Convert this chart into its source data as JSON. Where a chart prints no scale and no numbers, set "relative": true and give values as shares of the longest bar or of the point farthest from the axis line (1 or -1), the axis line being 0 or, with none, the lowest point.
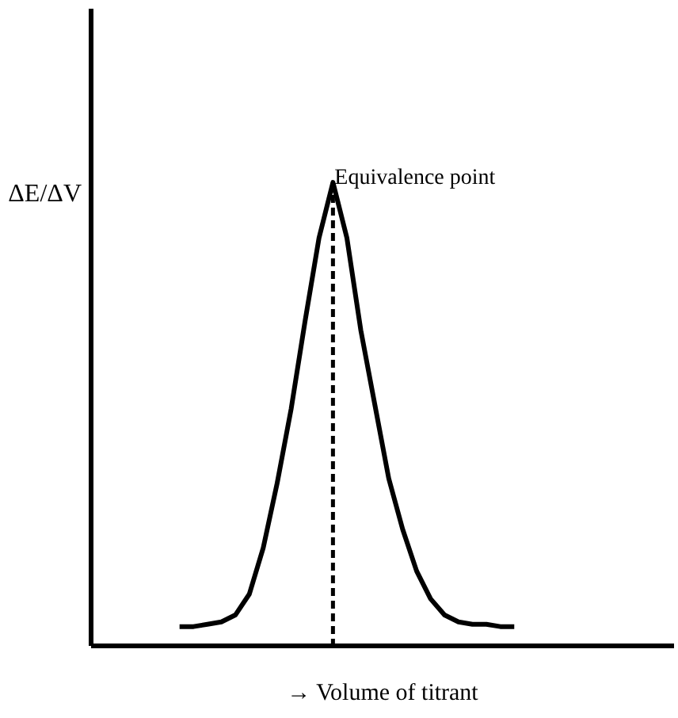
{
  "chart_data": {
    "type": "line",
    "relative": true,
    "xlabel": "→ Volume of titrant",
    "ylabel": "ΔE/ΔV",
    "categories": [
      null,
      null,
      null,
      null,
      null,
      null,
      null,
      null,
      null,
      null,
      null,
      null,
      null,
      null,
      null,
      null,
      null,
      null,
      null,
      null,
      null,
      null,
      null,
      null,
      null
    ],
    "series": [
      {
        "color": "#000000",
        "values": [
          0.04,
          0.04,
          0.045,
          0.05,
          0.065,
          0.11,
          0.21,
          0.35,
          0.51,
          0.7,
          0.88,
          1,
          0.88,
          0.68,
          0.52,
          0.36,
          0.25,
          0.16,
          0.1,
          0.065,
          0.05,
          0.045,
          0.045,
          0.04,
          0.04
        ]
      }
    ],
    "annotations": [
      "Equivalence point"
    ],
    "grid": false,
    "tick_labels": false,
    "marker": "none",
    "line_style": "solid"
  }
}
